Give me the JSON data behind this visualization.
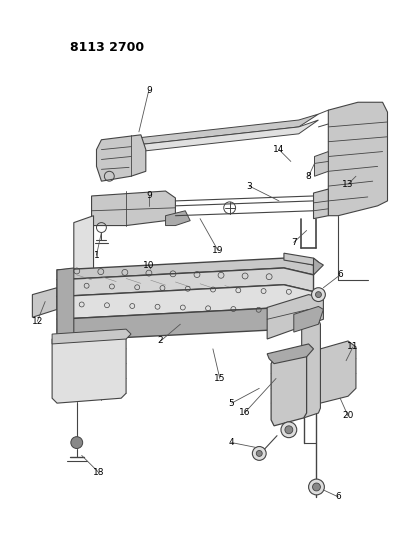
{
  "title": "8113 2700",
  "bg": "#ffffff",
  "lc": "#444444",
  "fc_gray": "#c8c8c8",
  "fc_light": "#e0e0e0",
  "fc_dark": "#aaaaaa",
  "fig_w": 4.11,
  "fig_h": 5.33,
  "dpi": 100
}
